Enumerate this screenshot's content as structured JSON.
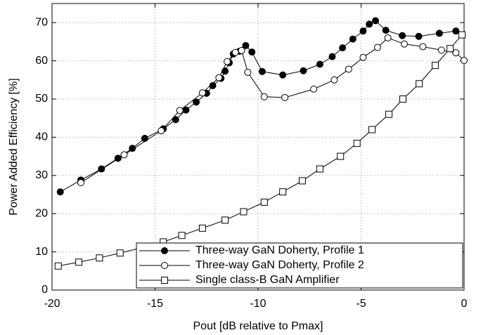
{
  "chart_data": {
    "type": "line",
    "xlabel": "Pout [dB relative to Pmax]",
    "ylabel": "Power Added Efficiency [%]",
    "xlim": [
      -20,
      0
    ],
    "xticks": [
      -20,
      -15,
      -10,
      -5,
      0
    ],
    "ylim": [
      0,
      75
    ],
    "yticks": [
      0,
      10,
      20,
      30,
      40,
      50,
      60,
      70
    ],
    "grid": true,
    "legend": "lower right",
    "series": [
      {
        "name": "Three-way GaN Doherty, Profile 1",
        "color": "#000000",
        "marker": "filled-circle",
        "x": [
          -19.6,
          -18.6,
          -17.6,
          -16.8,
          -16.1,
          -15.5,
          -14.6,
          -14.0,
          -13.5,
          -13.0,
          -12.5,
          -12.2,
          -11.8,
          -11.6,
          -11.4,
          -11.2,
          -10.9,
          -10.6,
          -10.3,
          -9.8,
          -8.8,
          -7.8,
          -7.0,
          -6.4,
          -5.9,
          -5.4,
          -4.9,
          -4.6,
          -4.3,
          -3.8,
          -3.0,
          -2.2,
          -1.2,
          -0.4
        ],
        "values": [
          25.7,
          28.8,
          31.7,
          34.5,
          37.1,
          39.7,
          42.2,
          44.6,
          47.1,
          49.2,
          51.5,
          53.5,
          55.4,
          57.3,
          59.5,
          61.8,
          62.5,
          64.0,
          62.3,
          57.2,
          56.3,
          57.4,
          59.1,
          61.1,
          63.4,
          65.7,
          67.8,
          69.6,
          70.5,
          68.0,
          66.6,
          66.4,
          67.2,
          67.8
        ]
      },
      {
        "name": "Three-way GaN Doherty, Profile 2",
        "color": "#000000",
        "marker": "open-circle",
        "x": [
          -18.6,
          -16.5,
          -14.7,
          -13.8,
          -12.7,
          -11.9,
          -11.5,
          -11.1,
          -10.8,
          -10.5,
          -9.7,
          -8.7,
          -7.3,
          -6.3,
          -5.6,
          -4.9,
          -4.2,
          -3.7,
          -2.9,
          -2.0,
          -1.1,
          -0.4,
          0
        ],
        "values": [
          28.1,
          35.4,
          41.7,
          47.0,
          51.6,
          55.6,
          59.8,
          62.2,
          62.7,
          57.0,
          50.6,
          50.4,
          52.6,
          55.0,
          57.8,
          60.9,
          63.5,
          66.0,
          64.4,
          63.7,
          62.8,
          62.1,
          60.1
        ]
      },
      {
        "name": "Single class-B GaN Amplifier",
        "color": "#000000",
        "marker": "open-square",
        "x": [
          -19.7,
          -18.7,
          -17.7,
          -16.7,
          -15.7,
          -14.6,
          -13.7,
          -12.7,
          -11.6,
          -10.7,
          -9.7,
          -8.8,
          -7.85,
          -7.0,
          -6.0,
          -5.2,
          -4.47,
          -3.65,
          -2.97,
          -2.18,
          -1.4,
          -0.68,
          -0.1
        ],
        "values": [
          6.3,
          7.3,
          8.4,
          9.7,
          11.0,
          12.6,
          14.3,
          16.2,
          18.3,
          20.5,
          23.0,
          25.7,
          28.6,
          31.7,
          35.0,
          38.4,
          42.0,
          46.0,
          50.0,
          54.0,
          58.8,
          63.2,
          66.8
        ]
      }
    ]
  }
}
